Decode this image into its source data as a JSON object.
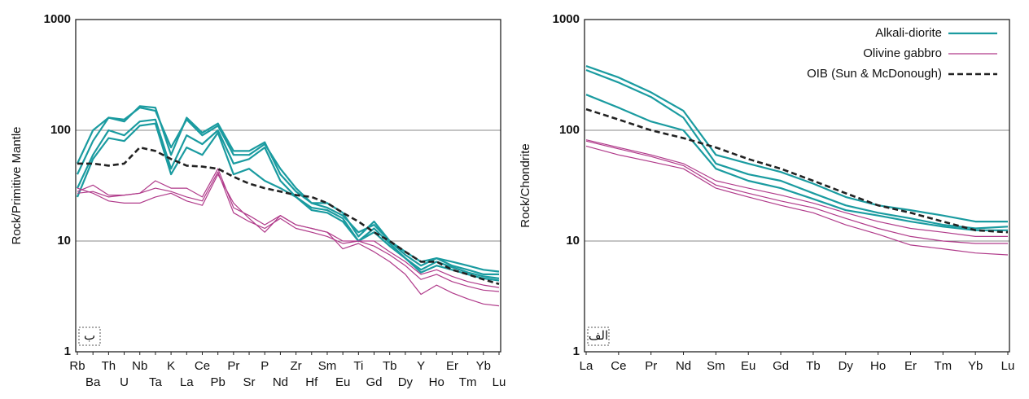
{
  "chart_data": [
    {
      "type": "line",
      "ylabel": "Rock/Primitive Mantle",
      "annotation": "ب",
      "log_scale": true,
      "grid": true,
      "ylim": [
        1,
        1000
      ],
      "yticks": [
        1,
        10,
        100,
        1000
      ],
      "categories": [
        "Rb",
        "Ba",
        "Th",
        "U",
        "Nb",
        "Ta",
        "K",
        "La",
        "Ce",
        "Pb",
        "Pr",
        "Sr",
        "P",
        "Nd",
        "Zr",
        "Hf",
        "Sm",
        "Eu",
        "Ti",
        "Gd",
        "Tb",
        "Dy",
        "Y",
        "Ho",
        "Er",
        "Tm",
        "Yb",
        "Lu"
      ],
      "series": [
        {
          "color": "#1a9ba0",
          "width": 2.2,
          "values": [
            [
              50,
              100,
              130,
              125,
              160,
              150,
              70,
              125,
              90,
              110,
              60,
              60,
              75,
              45,
              30,
              22,
              22,
              18,
              11,
              15,
              10,
              8,
              6.5,
              7,
              6.5,
              6,
              5.5,
              5.3
            ],
            [
              40,
              80,
              130,
              120,
              165,
              160,
              60,
              130,
              95,
              115,
              65,
              65,
              78,
              40,
              28,
              22,
              20,
              17,
              12,
              14,
              10,
              7.5,
              6,
              7,
              6,
              5.5,
              5,
              5
            ],
            [
              30,
              60,
              100,
              90,
              120,
              125,
              45,
              90,
              75,
              100,
              50,
              55,
              70,
              35,
              25,
              20,
              19,
              16,
              10,
              13,
              9.5,
              7,
              5.5,
              6.5,
              5.8,
              5.2,
              4.8,
              4.6
            ],
            [
              25,
              55,
              85,
              80,
              110,
              115,
              40,
              70,
              60,
              95,
              40,
              45,
              35,
              30,
              25,
              19,
              18,
              15,
              10,
              12,
              9,
              7,
              5.2,
              6,
              5.5,
              5,
              4.6,
              4.4
            ]
          ]
        },
        {
          "color": "#b03a8a",
          "width": 1.2,
          "values": [
            [
              28,
              32,
              26,
              26,
              27,
              35,
              30,
              30,
              25,
              45,
              20,
              17,
              14,
              17,
              14,
              13,
              12,
              10,
              10,
              10,
              8,
              6.5,
              5,
              5.5,
              4.8,
              4.3,
              4,
              3.8
            ],
            [
              27,
              28,
              25,
              26,
              27,
              30,
              28,
              25,
              23,
              42,
              18,
              15,
              13,
              16,
              13,
              12,
              11,
              9.5,
              10,
              9,
              7.5,
              6,
              4.5,
              5,
              4.3,
              3.9,
              3.6,
              3.5
            ],
            [
              30,
              27,
              23,
              22,
              22,
              25,
              27,
              23,
              21,
              40,
              22,
              16,
              12,
              17,
              14,
              13,
              12,
              8.5,
              9.5,
              8,
              6.5,
              5,
              3.3,
              4,
              3.4,
              3,
              2.7,
              2.6
            ]
          ]
        },
        {
          "color": "#222222",
          "width": 2.6,
          "dashed": true,
          "values": [
            [
              50,
              50,
              48,
              50,
              70,
              65,
              55,
              48,
              47,
              45,
              38,
              33,
              30,
              28,
              26,
              25,
              22,
              18,
              15,
              12,
              10,
              8,
              6.5,
              6.5,
              5.5,
              5,
              4.5,
              4.1
            ]
          ]
        }
      ]
    },
    {
      "type": "line",
      "ylabel": "Rock/Chondrite",
      "annotation": "الف",
      "log_scale": true,
      "grid": true,
      "ylim": [
        1,
        1000
      ],
      "yticks": [
        1,
        10,
        100,
        1000
      ],
      "legend": "upper right",
      "categories": [
        "La",
        "Ce",
        "Pr",
        "Nd",
        "Sm",
        "Eu",
        "Gd",
        "Tb",
        "Dy",
        "Ho",
        "Er",
        "Tm",
        "Yb",
        "Lu"
      ],
      "series": [
        {
          "name": "Alkali-diorite",
          "color": "#1a9ba0",
          "width": 2.2,
          "values": [
            [
              380,
              300,
              220,
              150,
              60,
              50,
              42,
              33,
              25,
              21,
              19,
              17,
              15,
              15
            ],
            [
              350,
              270,
              200,
              130,
              50,
              40,
              35,
              27,
              21,
              18,
              16,
              14,
              13,
              13.5
            ],
            [
              210,
              160,
              120,
              100,
              45,
              35,
              30,
              24,
              19,
              17,
              15,
              13.5,
              12.5,
              12.5
            ]
          ]
        },
        {
          "name": "Olivine gabbro",
          "color": "#b03a8a",
          "width": 1.2,
          "values": [
            [
              82,
              70,
              60,
              50,
              35,
              30,
              26,
              22,
              18,
              15,
              13,
              12,
              11,
              11
            ],
            [
              80,
              68,
              58,
              48,
              32,
              27,
              23,
              20,
              16,
              13,
              11,
              10,
              9.5,
              9.5
            ],
            [
              72,
              60,
              52,
              45,
              30,
              25,
              21,
              18,
              14,
              11.5,
              9.2,
              8.5,
              7.8,
              7.5
            ]
          ]
        },
        {
          "name": "OIB (Sun & McDonough)",
          "color": "#222222",
          "width": 2.6,
          "dashed": true,
          "values": [
            [
              155,
              125,
              100,
              85,
              70,
              55,
              45,
              35,
              27,
              21,
              18,
              15,
              12.5,
              12
            ]
          ]
        }
      ]
    }
  ]
}
